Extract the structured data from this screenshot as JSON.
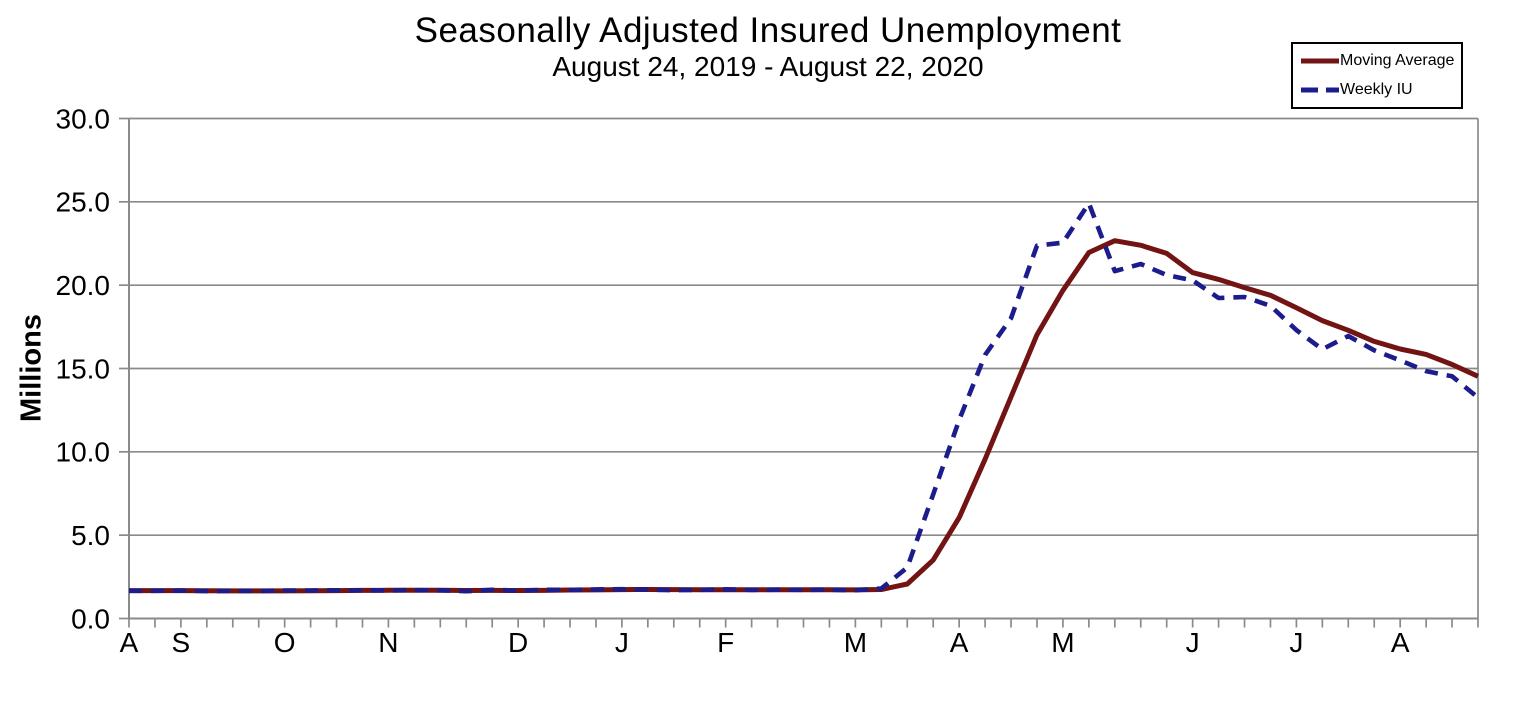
{
  "chart_data": {
    "type": "line",
    "title": "Seasonally Adjusted Insured Unemployment",
    "subtitle": "August 24, 2019 - August 22, 2020",
    "ylabel": "Millions",
    "ylim": [
      0,
      30
    ],
    "ytick_interval": 5,
    "ytick_labels": [
      "0.0",
      "5.0",
      "10.0",
      "15.0",
      "20.0",
      "25.0",
      "30.0"
    ],
    "n_weeks": 53,
    "x_month_ticks": [
      {
        "letter": "A",
        "week": 0
      },
      {
        "letter": "S",
        "week": 2
      },
      {
        "letter": "O",
        "week": 6
      },
      {
        "letter": "N",
        "week": 10
      },
      {
        "letter": "D",
        "week": 15
      },
      {
        "letter": "J",
        "week": 19
      },
      {
        "letter": "F",
        "week": 23
      },
      {
        "letter": "M",
        "week": 28
      },
      {
        "letter": "A",
        "week": 32
      },
      {
        "letter": "M",
        "week": 36
      },
      {
        "letter": "J",
        "week": 41
      },
      {
        "letter": "J",
        "week": 45
      },
      {
        "letter": "A",
        "week": 49
      }
    ],
    "grid": true,
    "legend_position": "top-right",
    "series": [
      {
        "name": "Moving Average",
        "style": "solid",
        "color": "#731414",
        "values": [
          1.675,
          1.673,
          1.672,
          1.661,
          1.659,
          1.656,
          1.658,
          1.667,
          1.676,
          1.686,
          1.69,
          1.693,
          1.694,
          1.681,
          1.688,
          1.682,
          1.688,
          1.708,
          1.714,
          1.736,
          1.739,
          1.734,
          1.727,
          1.725,
          1.721,
          1.727,
          1.729,
          1.724,
          1.719,
          1.738,
          2.073,
          3.502,
          6.056,
          9.559,
          13.297,
          17.03,
          19.689,
          21.962,
          22.67,
          22.392,
          21.907,
          20.752,
          20.349,
          19.855,
          19.393,
          18.646,
          17.876,
          17.292,
          16.624,
          16.17,
          15.843,
          15.239,
          14.53
        ]
      },
      {
        "name": "Weekly IU",
        "style": "dashed",
        "color": "#1c1c8c",
        "values": [
          1.661,
          1.662,
          1.674,
          1.646,
          1.654,
          1.651,
          1.679,
          1.683,
          1.691,
          1.692,
          1.693,
          1.697,
          1.693,
          1.64,
          1.722,
          1.671,
          1.72,
          1.719,
          1.744,
          1.759,
          1.732,
          1.701,
          1.714,
          1.751,
          1.717,
          1.726,
          1.722,
          1.729,
          1.699,
          1.803,
          3.059,
          7.446,
          11.914,
          15.818,
          18.011,
          22.377,
          22.548,
          24.912,
          20.841,
          21.268,
          20.606,
          20.292,
          19.231,
          19.29,
          18.76,
          17.304,
          16.151,
          16.951,
          16.09,
          15.486,
          14.844,
          14.535,
          13.254
        ]
      }
    ],
    "colors": {
      "grid": "#8a8a8a",
      "axis": "#8a8a8a",
      "text": "#000000",
      "background": "#ffffff"
    }
  }
}
